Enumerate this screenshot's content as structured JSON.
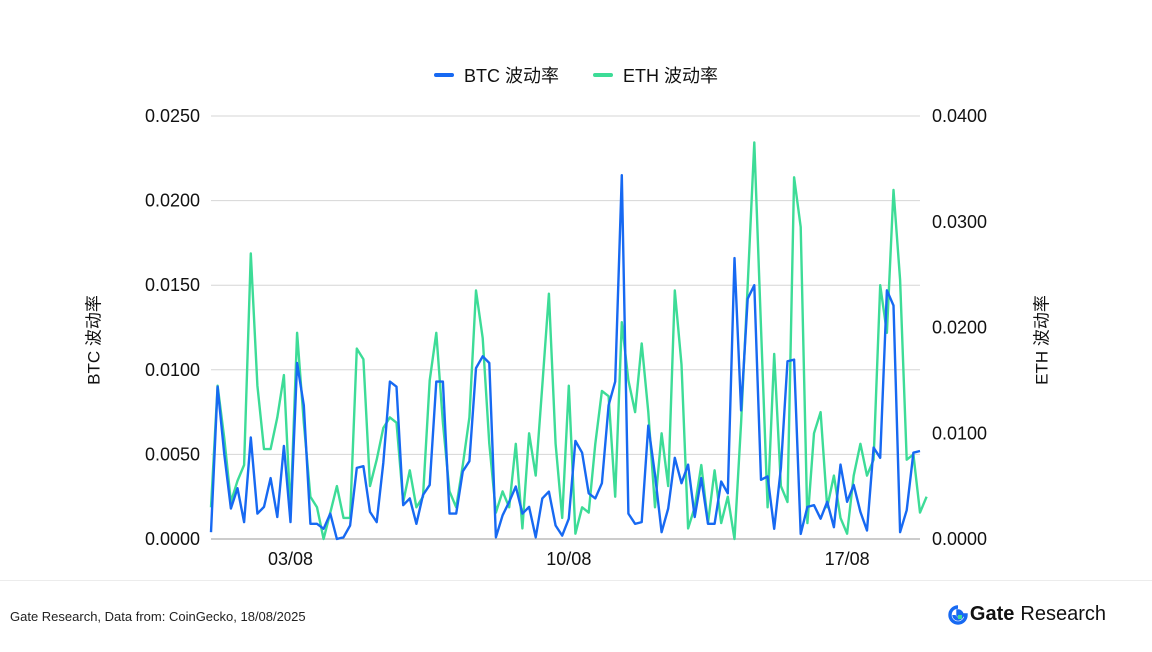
{
  "chart_data": {
    "type": "line",
    "title": "",
    "legend_position": "top-center",
    "grid": true,
    "y_left": {
      "label": "BTC 波动率",
      "ticks": [
        "0.0000",
        "0.0050",
        "0.0100",
        "0.0150",
        "0.0200",
        "0.0250"
      ],
      "lim": [
        0,
        0.025
      ]
    },
    "y_right": {
      "label": "ETH 波动率",
      "ticks": [
        "0.0000",
        "0.0100",
        "0.0200",
        "0.0300",
        "0.0400"
      ],
      "lim": [
        0,
        0.04
      ]
    },
    "x_ticks": [
      {
        "label": "03/08",
        "index": 12
      },
      {
        "label": "10/08",
        "index": 54
      },
      {
        "label": "17/08",
        "index": 96
      }
    ],
    "series": [
      {
        "name": "BTC 波动率",
        "axis": "left",
        "color": "#1769f2",
        "values": [
          0.0004,
          0.009,
          0.005,
          0.0018,
          0.003,
          0.001,
          0.006,
          0.0015,
          0.0019,
          0.0036,
          0.0013,
          0.0055,
          0.001,
          0.0104,
          0.0079,
          0.0009,
          0.0009,
          0.0006,
          0.0015,
          0.0,
          0.0001,
          0.0008,
          0.0042,
          0.0043,
          0.0016,
          0.001,
          0.0045,
          0.0093,
          0.009,
          0.002,
          0.0024,
          0.0009,
          0.0026,
          0.0032,
          0.0093,
          0.0093,
          0.0015,
          0.0015,
          0.004,
          0.0046,
          0.0101,
          0.0108,
          0.0104,
          0.0001,
          0.0014,
          0.0022,
          0.0031,
          0.0015,
          0.0019,
          0.0001,
          0.0024,
          0.0028,
          0.0008,
          0.0002,
          0.0012,
          0.0058,
          0.0051,
          0.0027,
          0.0024,
          0.0033,
          0.0079,
          0.0093,
          0.0215,
          0.0015,
          0.0009,
          0.001,
          0.0067,
          0.0038,
          0.0004,
          0.0018,
          0.0048,
          0.0033,
          0.0044,
          0.0013,
          0.0036,
          0.0009,
          0.0009,
          0.0034,
          0.0027,
          0.0166,
          0.0076,
          0.0142,
          0.015,
          0.0035,
          0.0037,
          0.0006,
          0.0042,
          0.0105,
          0.0106,
          0.0003,
          0.0019,
          0.002,
          0.0012,
          0.0022,
          0.0007,
          0.0044,
          0.0022,
          0.0032,
          0.0016,
          0.0005,
          0.0054,
          0.0048,
          0.0147,
          0.0138,
          0.0004,
          0.0017,
          0.0051,
          0.0052
        ]
      },
      {
        "name": "ETH 波动率",
        "axis": "right",
        "color": "#3ddc97",
        "values": [
          0.003,
          0.0145,
          0.0095,
          0.0035,
          0.0055,
          0.007,
          0.027,
          0.0145,
          0.0085,
          0.0085,
          0.0115,
          0.0155,
          0.0025,
          0.0195,
          0.011,
          0.004,
          0.003,
          0.0,
          0.0025,
          0.005,
          0.002,
          0.002,
          0.018,
          0.017,
          0.005,
          0.0075,
          0.0105,
          0.0115,
          0.011,
          0.0035,
          0.0065,
          0.003,
          0.004,
          0.015,
          0.0195,
          0.011,
          0.0045,
          0.003,
          0.007,
          0.0115,
          0.0235,
          0.019,
          0.009,
          0.0025,
          0.0045,
          0.003,
          0.009,
          0.001,
          0.01,
          0.006,
          0.0145,
          0.0232,
          0.009,
          0.002,
          0.0145,
          0.0005,
          0.003,
          0.0025,
          0.009,
          0.014,
          0.0135,
          0.004,
          0.0205,
          0.015,
          0.012,
          0.0185,
          0.012,
          0.003,
          0.01,
          0.005,
          0.0235,
          0.0165,
          0.001,
          0.003,
          0.007,
          0.0015,
          0.0065,
          0.0015,
          0.004,
          0.0,
          0.011,
          0.024,
          0.0375,
          0.02,
          0.003,
          0.0175,
          0.005,
          0.0035,
          0.0342,
          0.0295,
          0.0015,
          0.01,
          0.012,
          0.003,
          0.006,
          0.002,
          0.0005,
          0.006,
          0.009,
          0.006,
          0.0075,
          0.024,
          0.0195,
          0.033,
          0.0245,
          0.0075,
          0.008,
          0.0025,
          0.004
        ]
      }
    ]
  },
  "footer": {
    "source": "Gate Research, Data from: CoinGecko, 18/08/2025",
    "brand_bold": "Gate",
    "brand_light": "Research"
  }
}
